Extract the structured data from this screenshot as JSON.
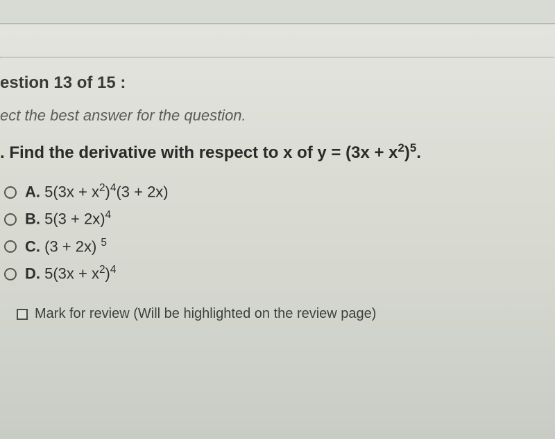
{
  "header": {
    "title": "estion 13 of 15 :"
  },
  "instruction": "ect the best answer for the question.",
  "question": {
    "prefix": ".   Find the derivative with respect to x of y = (3x + x",
    "sup1": "2",
    "mid": ")",
    "sup2": "5",
    "suffix": "."
  },
  "options": [
    {
      "letter": "A.",
      "pre": " 5(3x + x",
      "s1": "2",
      "mid": ")",
      "s2": "4",
      "post": "(3 + 2x)"
    },
    {
      "letter": "B.",
      "pre": " 5(3 + 2x)",
      "s1": "",
      "mid": "",
      "s2": "4",
      "post": ""
    },
    {
      "letter": "C.",
      "pre": " (3 + 2x) ",
      "s1": "",
      "mid": "",
      "s2": "5",
      "post": ""
    },
    {
      "letter": "D.",
      "pre": " 5(3x + x",
      "s1": "2",
      "mid": ")",
      "s2": "4",
      "post": ""
    }
  ],
  "review": {
    "label": "Mark for review (Will be highlighted on the review page)"
  },
  "colors": {
    "bg": "#d8dad4",
    "text": "#2a2a28",
    "muted": "#5a5c56",
    "border": "#55574f"
  }
}
